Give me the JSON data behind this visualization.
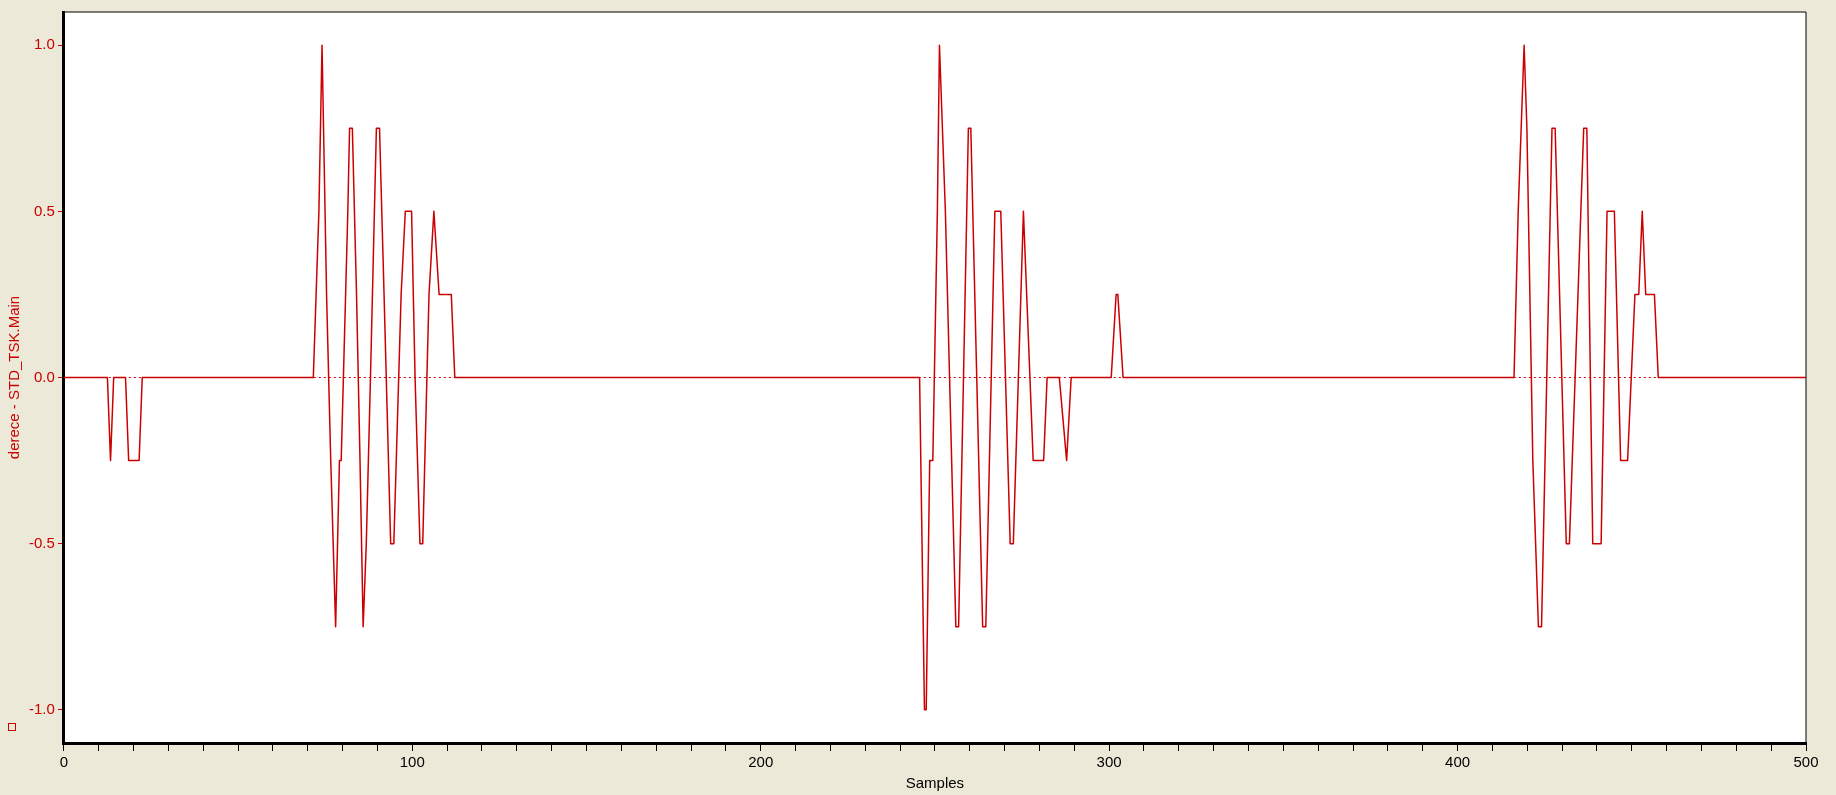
{
  "chart_data": {
    "type": "line",
    "xlabel": "Samples",
    "ylabel": "derece - STD_TSK.Main",
    "xlim": [
      0,
      500
    ],
    "ylim": [
      -1.1,
      1.1
    ],
    "xticks": [
      0,
      {
        "value": 10,
        "label": null
      },
      {
        "value": 20,
        "label": null
      },
      {
        "value": 30,
        "label": null
      },
      {
        "value": 40,
        "label": null
      },
      {
        "value": 50,
        "label": null
      },
      {
        "value": 60,
        "label": null
      },
      {
        "value": 70,
        "label": null
      },
      {
        "value": 80,
        "label": null
      },
      {
        "value": 90,
        "label": null
      },
      100,
      {
        "value": 110,
        "label": null
      },
      {
        "value": 120,
        "label": null
      },
      {
        "value": 130,
        "label": null
      },
      {
        "value": 140,
        "label": null
      },
      {
        "value": 150,
        "label": null
      },
      {
        "value": 160,
        "label": null
      },
      {
        "value": 170,
        "label": null
      },
      {
        "value": 180,
        "label": null
      },
      {
        "value": 190,
        "label": null
      },
      200,
      {
        "value": 210,
        "label": null
      },
      {
        "value": 220,
        "label": null
      },
      {
        "value": 230,
        "label": null
      },
      {
        "value": 240,
        "label": null
      },
      {
        "value": 250,
        "label": null
      },
      {
        "value": 260,
        "label": null
      },
      {
        "value": 270,
        "label": null
      },
      {
        "value": 280,
        "label": null
      },
      {
        "value": 290,
        "label": null
      },
      300,
      {
        "value": 310,
        "label": null
      },
      {
        "value": 320,
        "label": null
      },
      {
        "value": 330,
        "label": null
      },
      {
        "value": 340,
        "label": null
      },
      {
        "value": 350,
        "label": null
      },
      {
        "value": 360,
        "label": null
      },
      {
        "value": 370,
        "label": null
      },
      {
        "value": 380,
        "label": null
      },
      {
        "value": 390,
        "label": null
      },
      400,
      {
        "value": 410,
        "label": null
      },
      {
        "value": 420,
        "label": null
      },
      {
        "value": 430,
        "label": null
      },
      {
        "value": 440,
        "label": null
      },
      {
        "value": 450,
        "label": null
      },
      {
        "value": 460,
        "label": null
      },
      {
        "value": 470,
        "label": null
      },
      {
        "value": 480,
        "label": null
      },
      {
        "value": 490,
        "label": null
      },
      500
    ],
    "yticks": [
      {
        "value": -1,
        "label": "-1.0"
      },
      {
        "value": -0.5,
        "label": "-0.5"
      },
      {
        "value": 0,
        "label": "0.0"
      },
      {
        "value": 0.5,
        "label": "0.5"
      },
      {
        "value": 1,
        "label": "1.0"
      }
    ],
    "grid": false,
    "legend": false,
    "marker": "none",
    "line_style": "solid",
    "ref_lines": [
      {
        "axis": "y",
        "value": 0,
        "label": null,
        "color": "#cc0000",
        "line_style": "dotted"
      }
    ],
    "series": [
      {
        "color": "#cc0000",
        "x": [
          0,
          12.5,
          13.4,
          14.3,
          17.7,
          18.6,
          21.6,
          22.5,
          71.6,
          73.2,
          74.1,
          75.4,
          76.6,
          78,
          79.1,
          79.6,
          81.5,
          82,
          82.8,
          84,
          85,
          85.9,
          86.8,
          88,
          89.7,
          90.6,
          91.9,
          93.8,
          94.7,
          96.8,
          98,
          99.8,
          100.8,
          102.2,
          103,
          104.8,
          106.2,
          107.7,
          111.2,
          112.2,
          245.6,
          247,
          247.5,
          248.5,
          249.4,
          250.7,
          251.3,
          253,
          256,
          256.8,
          259.6,
          260.3,
          263.7,
          264.6,
          267.2,
          268.9,
          271.6,
          272.5,
          275.4,
          278.2,
          281.2,
          282.2,
          285.7,
          287.8,
          289.1,
          300.6,
          302,
          302.5,
          304,
          416.2,
          417.4,
          419.1,
          419.9,
          421.6,
          423.2,
          424.1,
          427.1,
          428,
          431.2,
          432.1,
          436.2,
          437.1,
          438.8,
          441.2,
          442.9,
          445,
          446.8,
          448.8,
          450.9,
          452,
          453,
          454,
          456.5,
          457.6,
          500
        ],
        "values": [
          0,
          0,
          -0.25,
          0,
          0,
          -0.25,
          -0.25,
          0,
          0,
          0.5,
          1,
          0.25,
          -0.25,
          -0.75,
          -0.25,
          -0.25,
          0.5,
          0.75,
          0.75,
          0.25,
          -0.25,
          -0.75,
          -0.5,
          0,
          0.75,
          0.75,
          0.25,
          -0.5,
          -0.5,
          0.25,
          0.5,
          0.5,
          0,
          -0.5,
          -0.5,
          0.25,
          0.5,
          0.25,
          0.25,
          0,
          0,
          -1,
          -1,
          -0.25,
          -0.25,
          0.5,
          1,
          0.5,
          -0.75,
          -0.75,
          0.75,
          0.75,
          -0.75,
          -0.75,
          0.5,
          0.5,
          -0.5,
          -0.5,
          0.5,
          -0.25,
          -0.25,
          0,
          0,
          -0.25,
          0,
          0,
          0.25,
          0.25,
          0,
          0,
          0.5,
          1,
          0.75,
          -0.25,
          -0.75,
          -0.75,
          0.75,
          0.75,
          -0.5,
          -0.5,
          0.75,
          0.75,
          -0.5,
          -0.5,
          0.5,
          0.5,
          -0.25,
          -0.25,
          0.25,
          0.25,
          0.5,
          0.25,
          0.25,
          0,
          0
        ]
      }
    ]
  }
}
